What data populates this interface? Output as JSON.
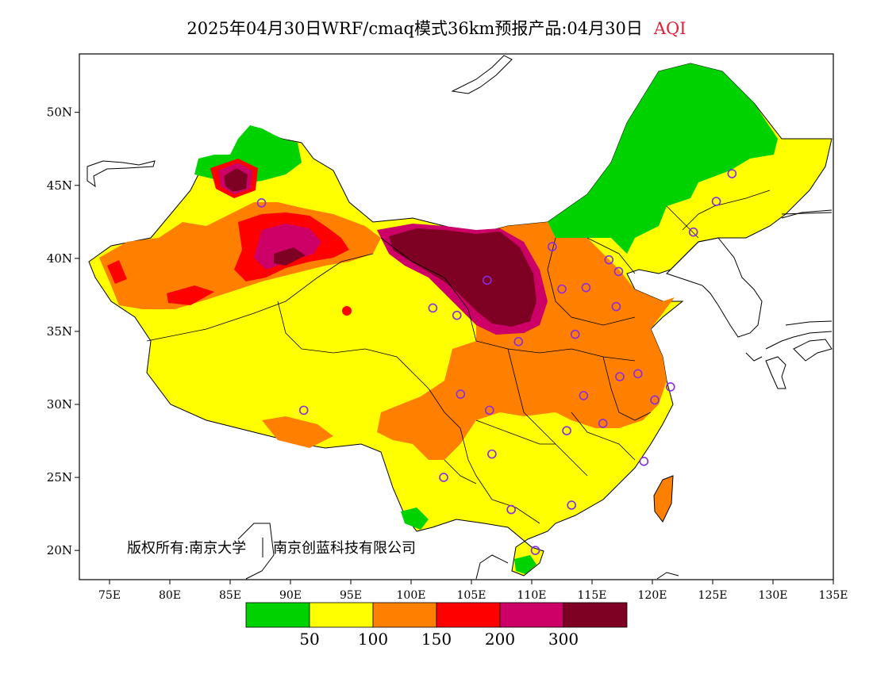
{
  "title": {
    "main": "2025年04月30日WRF/cmaq模式36km预报产品:04月30日",
    "variable": "AQI"
  },
  "axes": {
    "lat_labels": [
      "50N",
      "45N",
      "40N",
      "35N",
      "30N",
      "25N",
      "20N"
    ],
    "lon_labels": [
      "75E",
      "80E",
      "85E",
      "90E",
      "95E",
      "100E",
      "105E",
      "110E",
      "115E",
      "120E",
      "125E",
      "130E",
      "135E"
    ],
    "lon_range": [
      72.5,
      135
    ],
    "lat_range": [
      18,
      54
    ]
  },
  "copyright": {
    "owner1": "版权所有:南京大学",
    "owner2": "南京创蓝科技有限公司"
  },
  "legend": {
    "colors": [
      "#00d200",
      "#ffff00",
      "#ff8000",
      "#ff0000",
      "#cc0066",
      "#7e0023"
    ],
    "labels": [
      "50",
      "100",
      "150",
      "200",
      "300"
    ]
  },
  "colors": {
    "good": "#00d200",
    "moderate": "#ffff00",
    "unhealthy_sensitive": "#ff8000",
    "unhealthy": "#ff0000",
    "very_unhealthy": "#cc0066",
    "hazardous": "#7e0023",
    "station_marker": "#8a2be2"
  },
  "stations": [
    {
      "lon": 87.6,
      "lat": 43.8
    },
    {
      "lon": 91.1,
      "lat": 29.6
    },
    {
      "lon": 101.8,
      "lat": 36.6
    },
    {
      "lon": 103.8,
      "lat": 36.1
    },
    {
      "lon": 106.3,
      "lat": 38.5
    },
    {
      "lon": 104.1,
      "lat": 30.7
    },
    {
      "lon": 106.5,
      "lat": 29.6
    },
    {
      "lon": 102.7,
      "lat": 25.0
    },
    {
      "lon": 106.7,
      "lat": 26.6
    },
    {
      "lon": 108.3,
      "lat": 22.8
    },
    {
      "lon": 110.3,
      "lat": 20.0
    },
    {
      "lon": 113.3,
      "lat": 23.1
    },
    {
      "lon": 119.3,
      "lat": 26.1
    },
    {
      "lon": 112.9,
      "lat": 28.2
    },
    {
      "lon": 115.9,
      "lat": 28.7
    },
    {
      "lon": 114.3,
      "lat": 30.6
    },
    {
      "lon": 117.3,
      "lat": 31.9
    },
    {
      "lon": 118.8,
      "lat": 32.1
    },
    {
      "lon": 120.2,
      "lat": 30.3
    },
    {
      "lon": 121.5,
      "lat": 31.2
    },
    {
      "lon": 113.6,
      "lat": 34.8
    },
    {
      "lon": 108.9,
      "lat": 34.3
    },
    {
      "lon": 112.5,
      "lat": 37.9
    },
    {
      "lon": 114.5,
      "lat": 38.0
    },
    {
      "lon": 117.0,
      "lat": 36.7
    },
    {
      "lon": 116.4,
      "lat": 39.9
    },
    {
      "lon": 117.2,
      "lat": 39.1
    },
    {
      "lon": 111.7,
      "lat": 40.8
    },
    {
      "lon": 123.4,
      "lat": 41.8
    },
    {
      "lon": 125.3,
      "lat": 43.9
    },
    {
      "lon": 126.6,
      "lat": 45.8
    }
  ]
}
